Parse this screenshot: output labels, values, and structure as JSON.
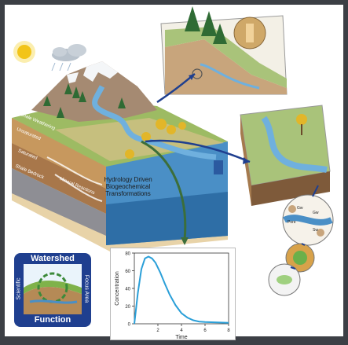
{
  "diagram": {
    "main_label": [
      "Hydrology Driven",
      "Biogeochemical",
      "Transformations"
    ],
    "layer_labels": [
      "Unsaturated",
      "Saturated",
      "Shale Bedrock",
      "Shale Weathering",
      "Mineral Reactions"
    ],
    "inset_labels": [
      "Gw",
      "Gw",
      "Pore",
      "Sw"
    ]
  },
  "logo": {
    "top": "Watershed",
    "left": "Scientific",
    "right": "Focus Area",
    "bottom": "Function"
  },
  "chart_data": {
    "type": "line",
    "xlabel": "Time",
    "ylabel": "Concentration",
    "xlim": [
      0,
      8
    ],
    "ylim": [
      0,
      80
    ],
    "xticks": [
      2,
      4,
      6,
      8
    ],
    "yticks": [
      0,
      20,
      40,
      60,
      80
    ],
    "x": [
      0,
      0.3,
      0.6,
      0.9,
      1.2,
      1.5,
      1.8,
      2.2,
      2.6,
      3.0,
      3.5,
      4.0,
      4.5,
      5.0,
      5.5,
      6.0,
      7.0,
      8.0
    ],
    "y": [
      0,
      35,
      62,
      74,
      76,
      74,
      69,
      58,
      45,
      33,
      21,
      12,
      7,
      4,
      2.5,
      2,
      1.5,
      1.2
    ],
    "color": "#2a9fd8"
  },
  "colors": {
    "background": "#3c3f45",
    "water": "#4a8fc6",
    "soil": "#c89a62",
    "grass": "#8fb35a",
    "tree": "#2f6b34",
    "aspen": "#e2b629",
    "arrow_blue": "#1f3f8f",
    "arrow_green": "#3c6e3a",
    "sun": "#f2c419"
  }
}
